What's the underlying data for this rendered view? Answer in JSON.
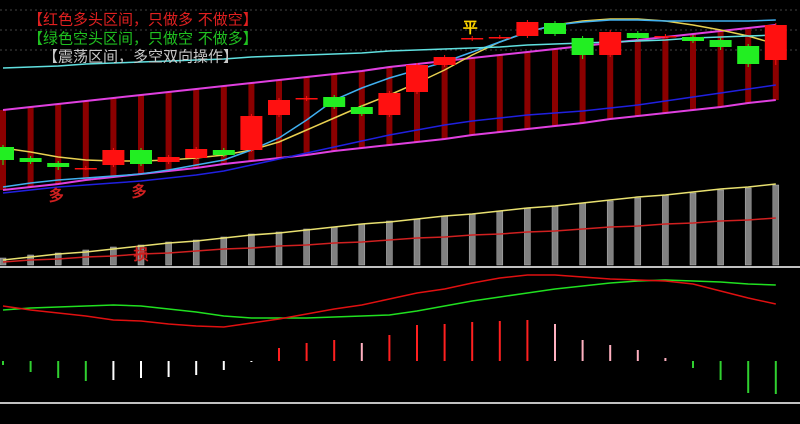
{
  "chart_data": [
    {
      "type": "candlestick",
      "texts": [
        "【红色多头区间，只做多 不做空】",
        "【绿色空头区间，只做空 不做多】",
        "【震荡区间，多空双向操作】"
      ],
      "text_colors": [
        "#e02020",
        "#20c020",
        "#c8c8c8"
      ],
      "annotations": [
        "平",
        "多",
        "多"
      ],
      "annotation_colors": [
        "#ffd700",
        "#d02020",
        "#d02020"
      ],
      "ylim": [
        0,
        265
      ],
      "up_color": "#ff1010",
      "down_color": "#22ee22",
      "open": [
        118,
        107,
        102,
        97,
        100,
        115,
        103,
        107,
        115,
        115,
        150,
        167,
        168,
        158,
        150,
        173,
        200,
        227,
        228,
        229,
        242,
        227,
        210,
        232,
        229,
        228,
        225,
        219,
        205
      ],
      "close": [
        105,
        103,
        98,
        97,
        115,
        101,
        108,
        116,
        110,
        149,
        165,
        167,
        158,
        151,
        172,
        200,
        208,
        227,
        228,
        243,
        231,
        210,
        233,
        227,
        229,
        224,
        218,
        201,
        240
      ],
      "high": [
        120,
        109,
        104,
        99,
        117,
        117,
        110,
        118,
        117,
        151,
        167,
        169,
        170,
        160,
        174,
        202,
        210,
        229,
        230,
        245,
        244,
        229,
        235,
        234,
        231,
        230,
        227,
        221,
        242
      ],
      "low": [
        100,
        101,
        95,
        95,
        98,
        99,
        101,
        105,
        108,
        113,
        148,
        164,
        156,
        149,
        148,
        171,
        198,
        224,
        226,
        227,
        229,
        206,
        208,
        225,
        227,
        222,
        215,
        198,
        200
      ],
      "channel": {
        "color": "#e040e0",
        "fill_color": "#8b0000",
        "upper": [
          155,
          158,
          161,
          164,
          167,
          170,
          173,
          176,
          179,
          182,
          185,
          188,
          191,
          194,
          198,
          201,
          204,
          207,
          210,
          213,
          216,
          219,
          222,
          225,
          228,
          231,
          234,
          237,
          240
        ],
        "lower": [
          75,
          78,
          81,
          85,
          88,
          91,
          94,
          97,
          101,
          104,
          107,
          110,
          114,
          117,
          120,
          123,
          126,
          130,
          133,
          136,
          139,
          142,
          146,
          149,
          152,
          155,
          158,
          162,
          165
        ]
      },
      "series": [
        {
          "color": "#e8d050",
          "values": [
            117,
            113,
            108,
            105,
            104,
            104,
            105,
            107,
            110,
            115,
            123,
            135,
            147,
            159,
            170,
            182,
            195,
            210,
            223,
            233,
            240,
            244,
            246,
            246,
            244,
            240,
            235,
            229,
            221
          ]
        },
        {
          "color": "#40b0f0",
          "values": [
            78,
            82,
            85,
            87,
            89,
            91,
            95,
            100,
            105,
            115,
            127,
            145,
            165,
            177,
            187,
            195,
            203,
            213,
            223,
            233,
            240,
            243,
            245,
            245,
            244,
            244,
            244,
            244,
            245
          ]
        },
        {
          "color": "#2020e0",
          "values": [
            72,
            75,
            78,
            80,
            82,
            84,
            87,
            90,
            94,
            100,
            106,
            112,
            118,
            124,
            130,
            135,
            140,
            144,
            147,
            150,
            152,
            154,
            157,
            160,
            164,
            168,
            172,
            176,
            180
          ]
        },
        {
          "color": "#60e0e0",
          "values": [
            197,
            198,
            199,
            201,
            202,
            203,
            204,
            205,
            206,
            208,
            209,
            210,
            211,
            212,
            214,
            215,
            216,
            217,
            218,
            220,
            221,
            222,
            223,
            224,
            225,
            227,
            228,
            229,
            230
          ]
        }
      ]
    },
    {
      "type": "bar",
      "ylim": [
        0,
        80
      ],
      "color": "#808080",
      "annotations": [
        "损"
      ],
      "annotation_colors": [
        "#d02020"
      ],
      "values": [
        7,
        10,
        12,
        15,
        18,
        20,
        23,
        25,
        28,
        31,
        33,
        36,
        38,
        41,
        44,
        46,
        49,
        51,
        54,
        57,
        59,
        62,
        64,
        67,
        70,
        72,
        75,
        77,
        80
      ],
      "series": [
        {
          "color": "#e8e070",
          "values": [
            5,
            8,
            11,
            13,
            16,
            19,
            22,
            24,
            27,
            30,
            32,
            35,
            38,
            41,
            43,
            46,
            49,
            51,
            54,
            57,
            59,
            62,
            65,
            68,
            70,
            73,
            76,
            78,
            81
          ]
        },
        {
          "color": "#d02020",
          "values": [
            3,
            5,
            6,
            8,
            9,
            11,
            12,
            14,
            16,
            17,
            19,
            20,
            22,
            23,
            25,
            27,
            28,
            30,
            31,
            33,
            34,
            36,
            38,
            39,
            41,
            42,
            44,
            45,
            47
          ]
        }
      ]
    },
    {
      "type": "macd",
      "ylim": [
        -41,
        93
      ],
      "colors": {
        "up_rising": "#ff2020",
        "up_falling": "#ffb0c0",
        "down_falling": "#30d030",
        "down_rising": "#ffffff"
      },
      "values": [
        -4,
        -11,
        -17,
        -20,
        -19,
        -17,
        -16,
        -14,
        -9,
        -1,
        13,
        18,
        21,
        18,
        26,
        36,
        37,
        39,
        40,
        41,
        37,
        21,
        16,
        11,
        3,
        -7,
        -19,
        -32,
        -33
      ],
      "series": [
        {
          "color": "#20e020",
          "values": [
            51,
            53,
            54,
            55,
            56,
            55,
            52,
            49,
            45,
            43,
            43,
            43,
            44,
            45,
            46,
            50,
            55,
            60,
            64,
            68,
            72,
            75,
            78,
            80,
            81,
            80,
            79,
            77,
            76
          ]
        },
        {
          "color": "#e01010",
          "values": [
            55,
            51,
            48,
            45,
            41,
            40,
            37,
            35,
            34,
            38,
            42,
            47,
            52,
            56,
            62,
            68,
            72,
            78,
            83,
            86,
            86,
            84,
            82,
            81,
            80,
            77,
            70,
            63,
            57
          ]
        }
      ]
    }
  ]
}
